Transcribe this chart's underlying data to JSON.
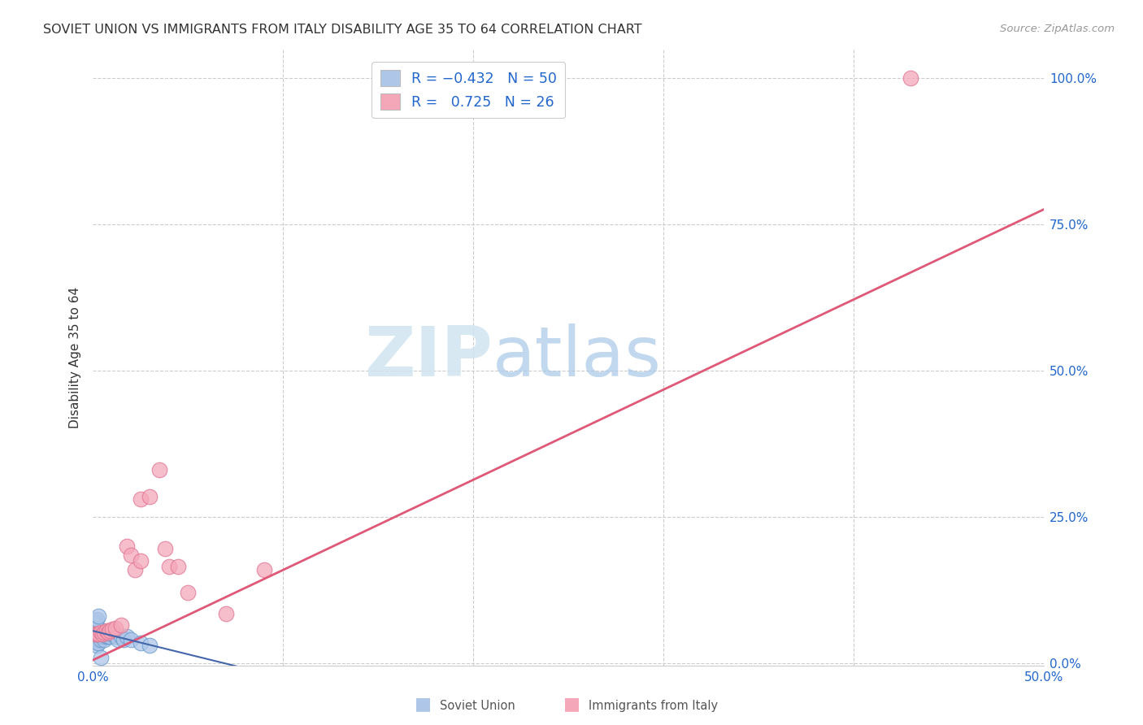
{
  "title": "SOVIET UNION VS IMMIGRANTS FROM ITALY DISABILITY AGE 35 TO 64 CORRELATION CHART",
  "source": "Source: ZipAtlas.com",
  "ylabel": "Disability Age 35 to 64",
  "xlim": [
    0,
    0.5
  ],
  "ylim": [
    -0.005,
    1.05
  ],
  "xticks": [
    0.0,
    0.1,
    0.2,
    0.3,
    0.4,
    0.5
  ],
  "xticklabels": [
    "0.0%",
    "",
    "",
    "",
    "",
    "50.0%"
  ],
  "yticks": [
    0.0,
    0.25,
    0.5,
    0.75,
    1.0
  ],
  "yticklabels": [
    "0.0%",
    "25.0%",
    "50.0%",
    "75.0%",
    "100.0%"
  ],
  "grid_color": "#cccccc",
  "background_color": "#ffffff",
  "soviet_color": "#aec6e8",
  "italy_color": "#f4a7b9",
  "soviet_edge": "#6699cc",
  "italy_edge": "#e07090",
  "regline_italy_color": "#e05878",
  "regline_soviet_color": "#4466aa",
  "watermark_zip": "ZIP",
  "watermark_atlas": "atlas",
  "soviet_points_x": [
    0.001,
    0.001,
    0.001,
    0.001,
    0.001,
    0.001,
    0.001,
    0.001,
    0.002,
    0.002,
    0.002,
    0.002,
    0.002,
    0.002,
    0.002,
    0.003,
    0.003,
    0.003,
    0.003,
    0.003,
    0.004,
    0.004,
    0.004,
    0.004,
    0.005,
    0.005,
    0.005,
    0.006,
    0.006,
    0.006,
    0.007,
    0.007,
    0.008,
    0.008,
    0.009,
    0.009,
    0.01,
    0.01,
    0.012,
    0.013,
    0.015,
    0.016,
    0.018,
    0.02,
    0.025,
    0.03,
    0.001,
    0.002,
    0.003,
    0.004
  ],
  "soviet_points_y": [
    0.065,
    0.07,
    0.072,
    0.068,
    0.06,
    0.055,
    0.05,
    0.045,
    0.06,
    0.055,
    0.05,
    0.045,
    0.04,
    0.035,
    0.03,
    0.055,
    0.05,
    0.045,
    0.04,
    0.035,
    0.055,
    0.05,
    0.045,
    0.04,
    0.055,
    0.05,
    0.045,
    0.05,
    0.045,
    0.04,
    0.05,
    0.045,
    0.05,
    0.045,
    0.05,
    0.045,
    0.055,
    0.05,
    0.045,
    0.04,
    0.045,
    0.04,
    0.045,
    0.04,
    0.035,
    0.03,
    0.068,
    0.075,
    0.08,
    0.01
  ],
  "italy_points_x": [
    0.001,
    0.002,
    0.003,
    0.004,
    0.005,
    0.006,
    0.007,
    0.008,
    0.009,
    0.01,
    0.012,
    0.015,
    0.018,
    0.02,
    0.022,
    0.025,
    0.025,
    0.03,
    0.035,
    0.038,
    0.04,
    0.045,
    0.05,
    0.07,
    0.09,
    0.43
  ],
  "italy_points_y": [
    0.05,
    0.05,
    0.05,
    0.052,
    0.05,
    0.052,
    0.055,
    0.052,
    0.055,
    0.058,
    0.06,
    0.065,
    0.2,
    0.185,
    0.16,
    0.175,
    0.28,
    0.285,
    0.33,
    0.195,
    0.165,
    0.165,
    0.12,
    0.085,
    0.16,
    1.0
  ]
}
